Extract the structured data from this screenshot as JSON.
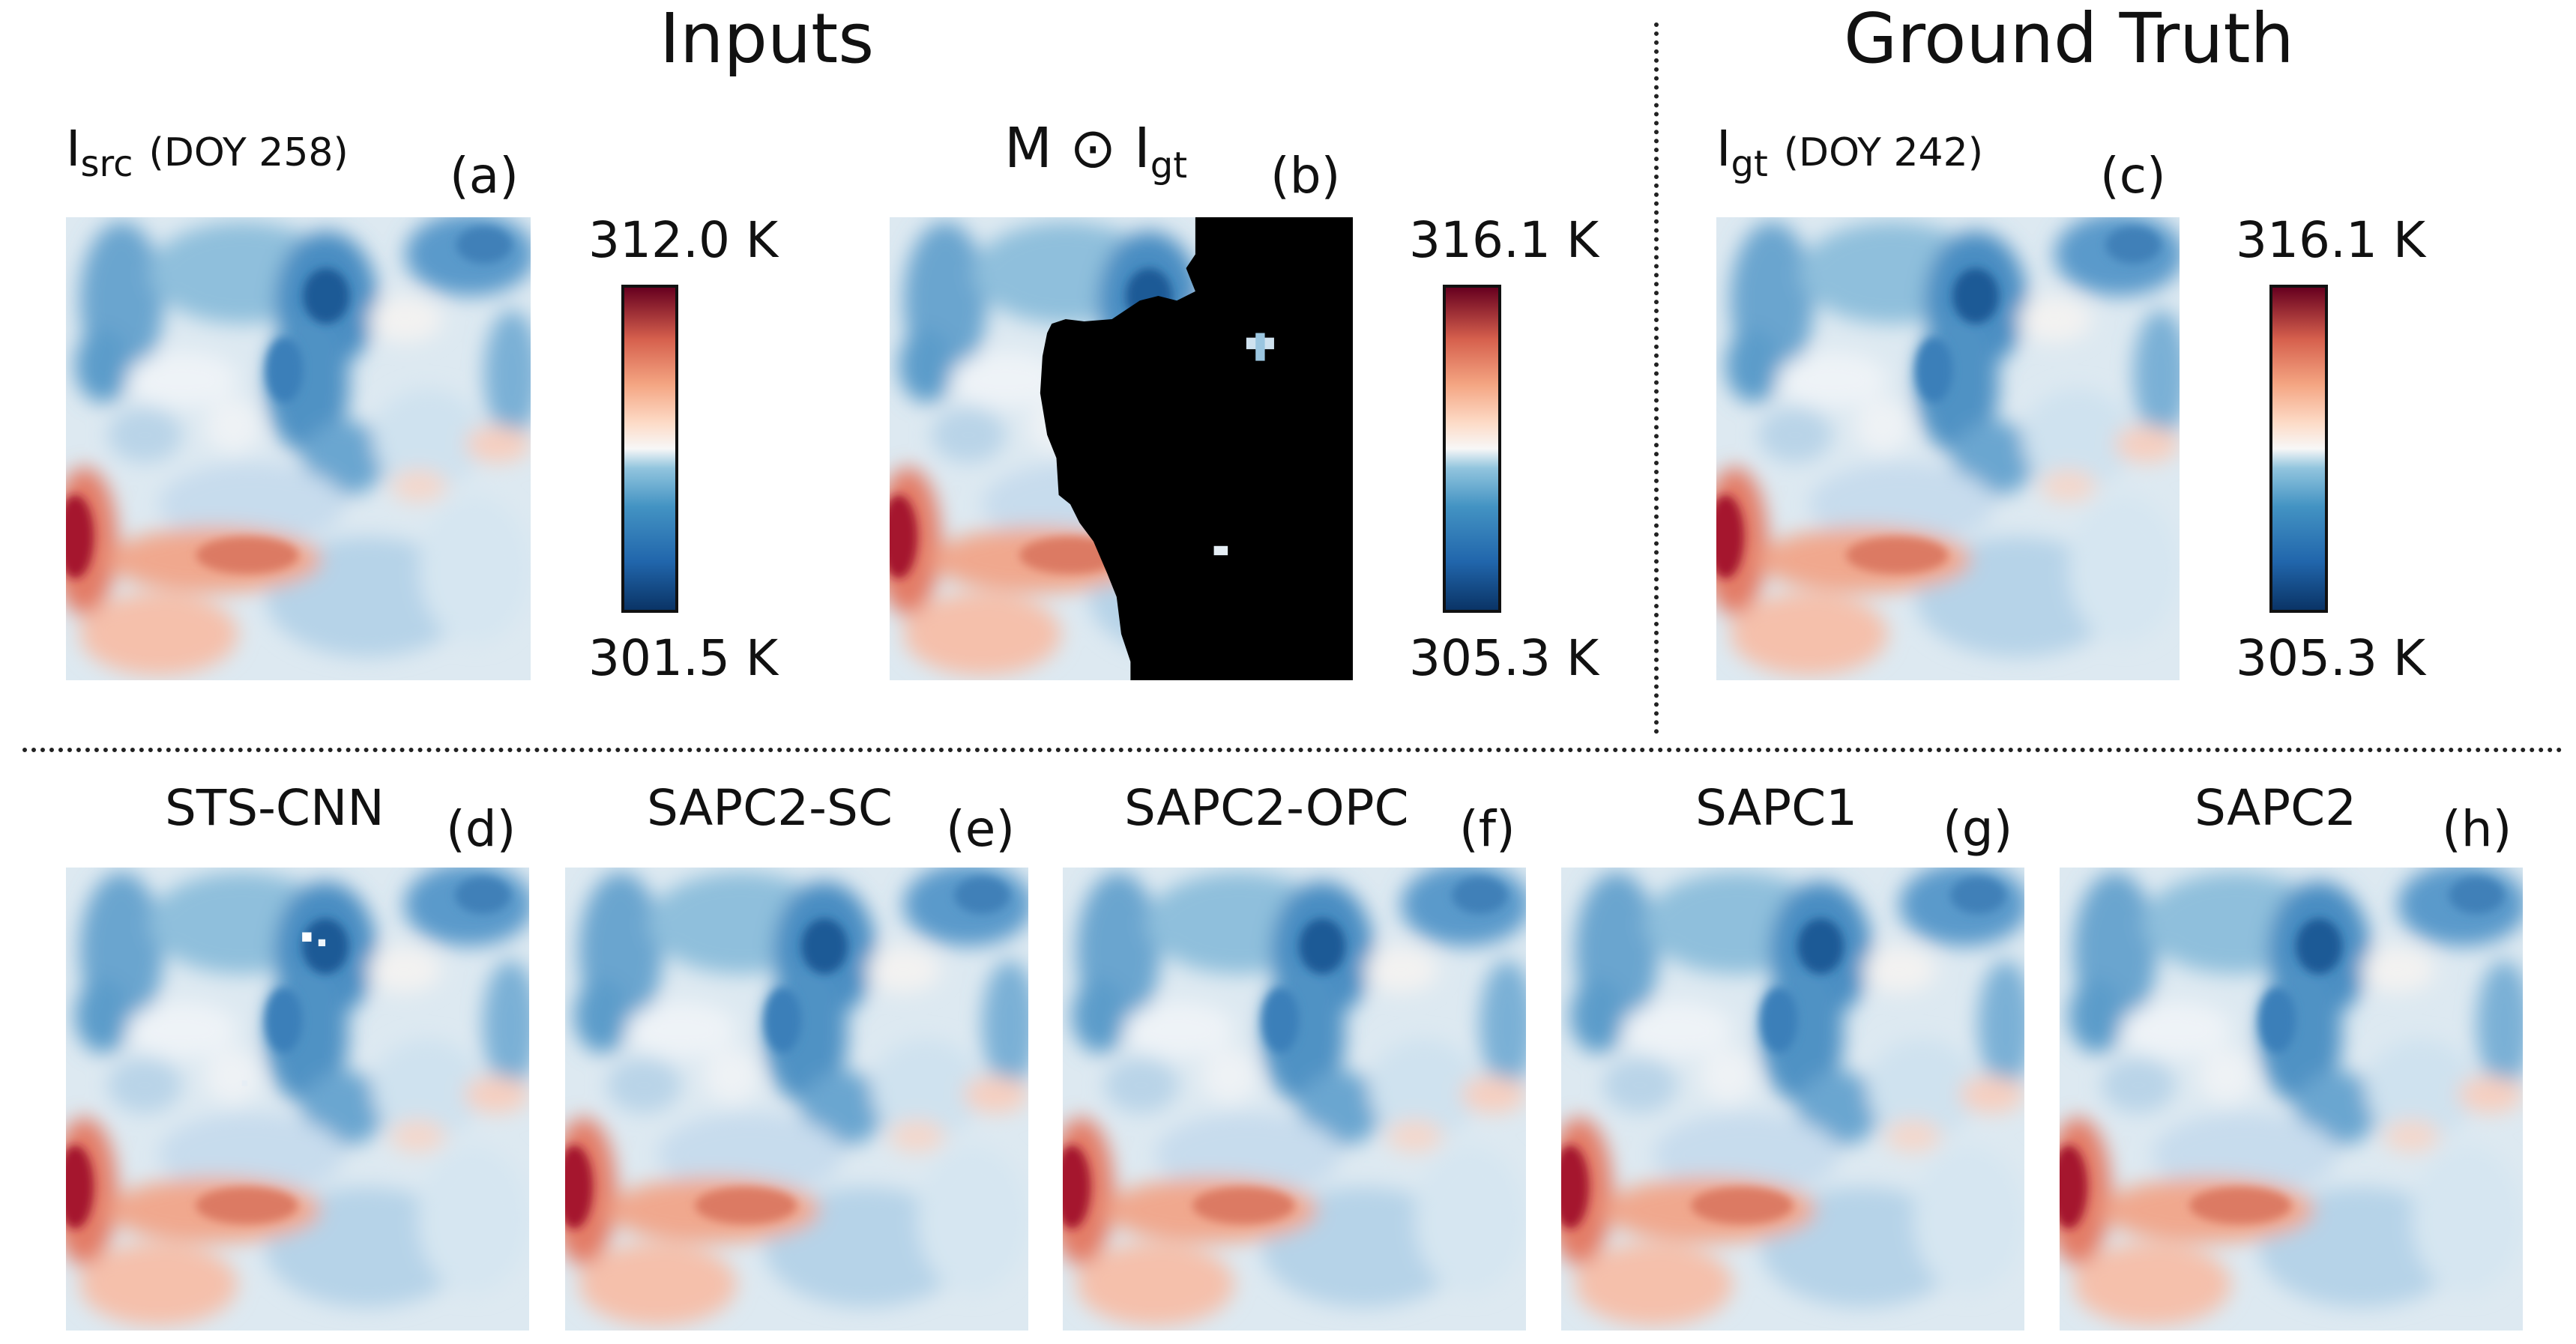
{
  "sections": {
    "inputs": "Inputs",
    "ground_truth": "Ground Truth"
  },
  "panels": {
    "a": {
      "main": "I",
      "sub": "src",
      "doy": "(DOY 258)",
      "label": "(a)"
    },
    "b": {
      "m": "M",
      "odot": "⊙",
      "main": "I",
      "sub": "gt",
      "label": "(b)"
    },
    "c": {
      "main": "I",
      "sub": "gt",
      "doy": "(DOY 242)",
      "label": "(c)"
    },
    "d": {
      "title": "STS-CNN",
      "label": "(d)"
    },
    "e": {
      "title": "SAPC2-SC",
      "label": "(e)"
    },
    "f": {
      "title": "SAPC2-OPC",
      "label": "(f)"
    },
    "g": {
      "title": "SAPC1",
      "label": "(g)"
    },
    "h": {
      "title": "SAPC2",
      "label": "(h)"
    }
  },
  "colorbars": [
    {
      "max": "312.0 K",
      "min": "301.5 K"
    },
    {
      "max": "316.1 K",
      "min": "305.3 K"
    },
    {
      "max": "316.1 K",
      "min": "305.3 K"
    }
  ],
  "colors": {
    "cmap_dark_red": "#7a0522",
    "cmap_red": "#d6604d",
    "cmap_light_red": "#f4a582",
    "cmap_white": "#f7f7f7",
    "cmap_light_blue": "#92c5de",
    "cmap_blue": "#4393c3",
    "cmap_dark_blue": "#0a3466",
    "mask_black": "#000000"
  }
}
